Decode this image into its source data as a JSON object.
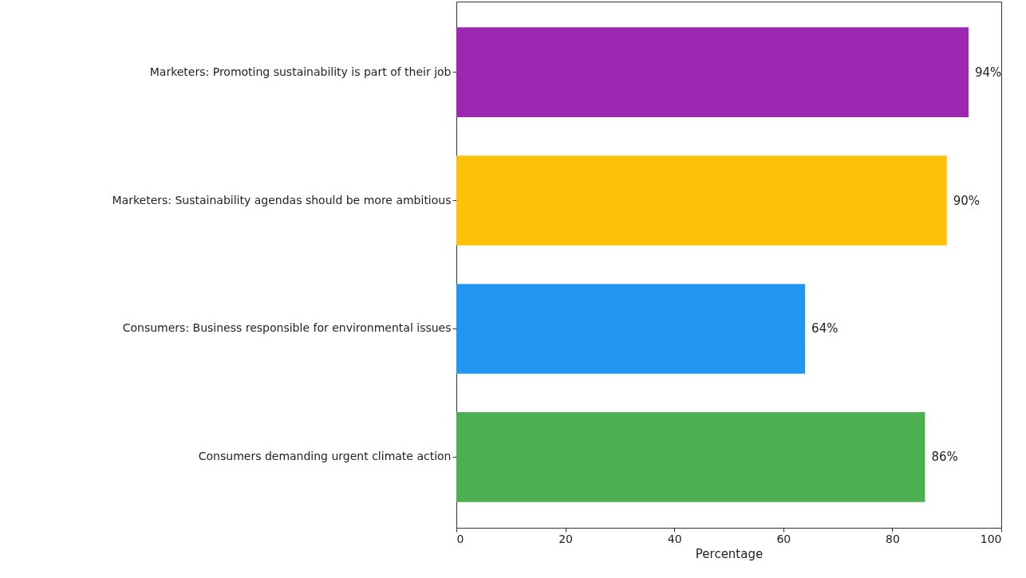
{
  "chart_data": {
    "type": "bar",
    "orientation": "horizontal",
    "xlabel": "Percentage",
    "categories": [
      "Marketers: Promoting sustainability is part of their job",
      "Marketers: Sustainability agendas should be more ambitious",
      "Consumers: Business responsible for environmental issues",
      "Consumers demanding urgent climate action"
    ],
    "values": [
      94,
      90,
      64,
      86
    ],
    "colors": [
      "#9c27b0",
      "#ffc107",
      "#2196f3",
      "#4caf50"
    ],
    "value_labels": [
      "94%",
      "90%",
      "64%",
      "86%"
    ],
    "xlim": [
      0,
      100
    ],
    "xticks": [
      0,
      20,
      40,
      60,
      80,
      100
    ],
    "grid": false
  }
}
